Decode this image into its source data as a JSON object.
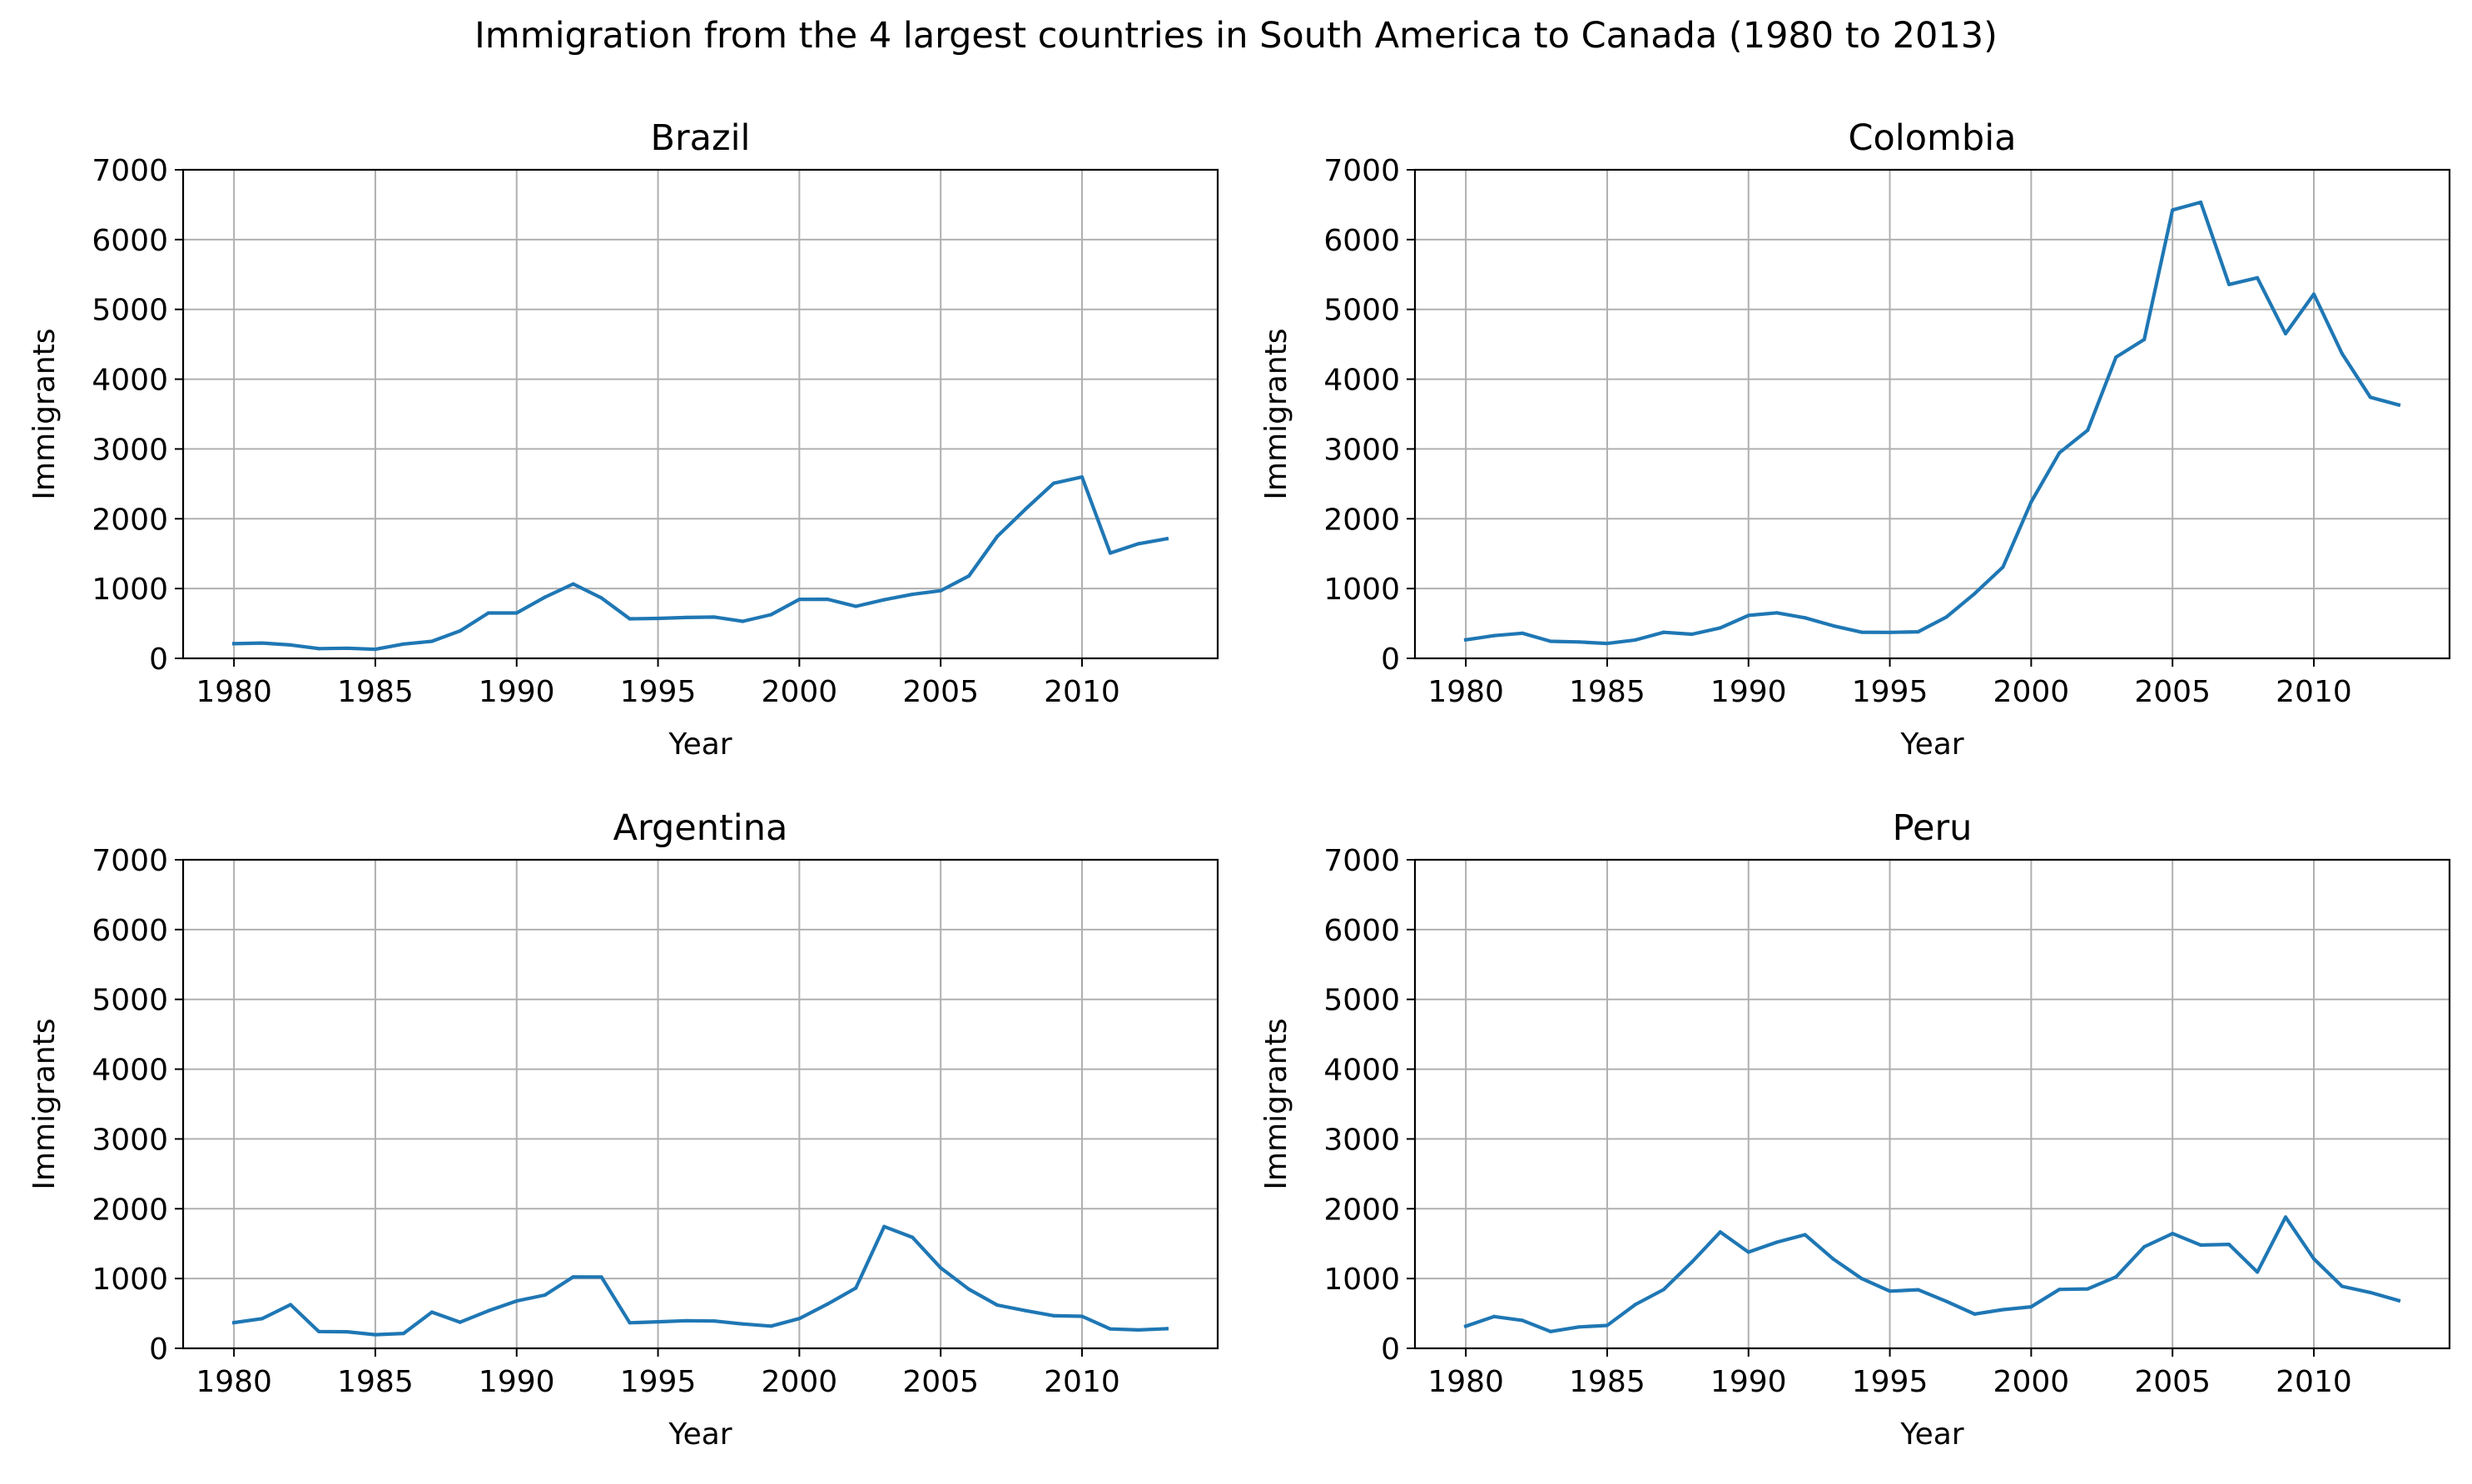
{
  "figure": {
    "suptitle": "Immigration from the 4 largest countries in South America to Canada (1980 to 2013)"
  },
  "style": {
    "line_color": "#1f77b4",
    "grid_color": "#b0b0b0",
    "axis_color": "#000000"
  },
  "chart_data": [
    {
      "type": "line",
      "title": "Brazil",
      "xlabel": "Year",
      "ylabel": "Immigrants",
      "xlim": [
        1978.2,
        2014.8
      ],
      "ylim": [
        0,
        7000
      ],
      "xticks": [
        1980,
        1985,
        1990,
        1995,
        2000,
        2005,
        2010
      ],
      "yticks": [
        0,
        1000,
        2000,
        3000,
        4000,
        5000,
        6000,
        7000
      ],
      "grid": true,
      "x": [
        1980,
        1981,
        1982,
        1983,
        1984,
        1985,
        1986,
        1987,
        1988,
        1989,
        1990,
        1991,
        1992,
        1993,
        1994,
        1995,
        1996,
        1997,
        1998,
        1999,
        2000,
        2001,
        2002,
        2003,
        2004,
        2005,
        2006,
        2007,
        2008,
        2009,
        2010,
        2011,
        2012,
        2013
      ],
      "values": [
        211,
        220,
        192,
        139,
        145,
        130,
        205,
        244,
        394,
        650,
        650,
        877,
        1066,
        866,
        566,
        572,
        586,
        591,
        531,
        626,
        845,
        847,
        745,
        839,
        917,
        969,
        1181,
        1746,
        2138,
        2509,
        2598,
        1508,
        1642,
        1714
      ]
    },
    {
      "type": "line",
      "title": "Colombia",
      "xlabel": "Year",
      "ylabel": "Immigrants",
      "xlim": [
        1978.2,
        2014.8
      ],
      "ylim": [
        0,
        7000
      ],
      "xticks": [
        1980,
        1985,
        1990,
        1995,
        2000,
        2005,
        2010
      ],
      "yticks": [
        0,
        1000,
        2000,
        3000,
        4000,
        5000,
        6000,
        7000
      ],
      "grid": true,
      "x": [
        1980,
        1981,
        1982,
        1983,
        1984,
        1985,
        1986,
        1987,
        1988,
        1989,
        1990,
        1991,
        1992,
        1993,
        1994,
        1995,
        1996,
        1997,
        1998,
        1999,
        2000,
        2001,
        2002,
        2003,
        2004,
        2005,
        2006,
        2007,
        2008,
        2009,
        2010,
        2011,
        2012,
        2013
      ],
      "values": [
        266,
        326,
        360,
        244,
        235,
        214,
        264,
        373,
        346,
        437,
        615,
        652,
        581,
        466,
        375,
        372,
        380,
        591,
        928,
        1307,
        2241,
        2945,
        3269,
        4316,
        4568,
        6424,
        6535,
        5357,
        5452,
        4652,
        5218,
        4366,
        3741,
        3631
      ]
    },
    {
      "type": "line",
      "title": "Argentina",
      "xlabel": "Year",
      "ylabel": "Immigrants",
      "xlim": [
        1978.2,
        2014.8
      ],
      "ylim": [
        0,
        7000
      ],
      "xticks": [
        1980,
        1985,
        1990,
        1995,
        2000,
        2005,
        2010
      ],
      "yticks": [
        0,
        1000,
        2000,
        3000,
        4000,
        5000,
        6000,
        7000
      ],
      "grid": true,
      "x": [
        1980,
        1981,
        1982,
        1983,
        1984,
        1985,
        1986,
        1987,
        1988,
        1989,
        1990,
        1991,
        1992,
        1993,
        1994,
        1995,
        1996,
        1997,
        1998,
        1999,
        2000,
        2001,
        2002,
        2003,
        2004,
        2005,
        2006,
        2007,
        2008,
        2009,
        2010,
        2011,
        2012,
        2013
      ],
      "values": [
        368,
        426,
        626,
        241,
        237,
        196,
        213,
        519,
        374,
        538,
        678,
        763,
        1023,
        1022,
        366,
        380,
        396,
        391,
        349,
        318,
        427,
        635,
        865,
        1745,
        1591,
        1153,
        847,
        620,
        540,
        467,
        459,
        278,
        263,
        282
      ]
    },
    {
      "type": "line",
      "title": "Peru",
      "xlabel": "Year",
      "ylabel": "Immigrants",
      "xlim": [
        1978.2,
        2014.8
      ],
      "ylim": [
        0,
        7000
      ],
      "xticks": [
        1980,
        1985,
        1990,
        1995,
        2000,
        2005,
        2010
      ],
      "yticks": [
        0,
        1000,
        2000,
        3000,
        4000,
        5000,
        6000,
        7000
      ],
      "grid": true,
      "x": [
        1980,
        1981,
        1982,
        1983,
        1984,
        1985,
        1986,
        1987,
        1988,
        1989,
        1990,
        1991,
        1992,
        1993,
        1994,
        1995,
        1996,
        1997,
        1998,
        1999,
        2000,
        2001,
        2002,
        2003,
        2004,
        2005,
        2006,
        2007,
        2008,
        2009,
        2010,
        2011,
        2012,
        2013
      ],
      "values": [
        317,
        456,
        401,
        241,
        306,
        328,
        628,
        843,
        1237,
        1667,
        1379,
        1520,
        1628,
        1279,
        1000,
        819,
        840,
        673,
        491,
        554,
        595,
        844,
        851,
        1023,
        1455,
        1645,
        1480,
        1490,
        1092,
        1880,
        1282,
        888,
        800,
        684
      ]
    }
  ]
}
